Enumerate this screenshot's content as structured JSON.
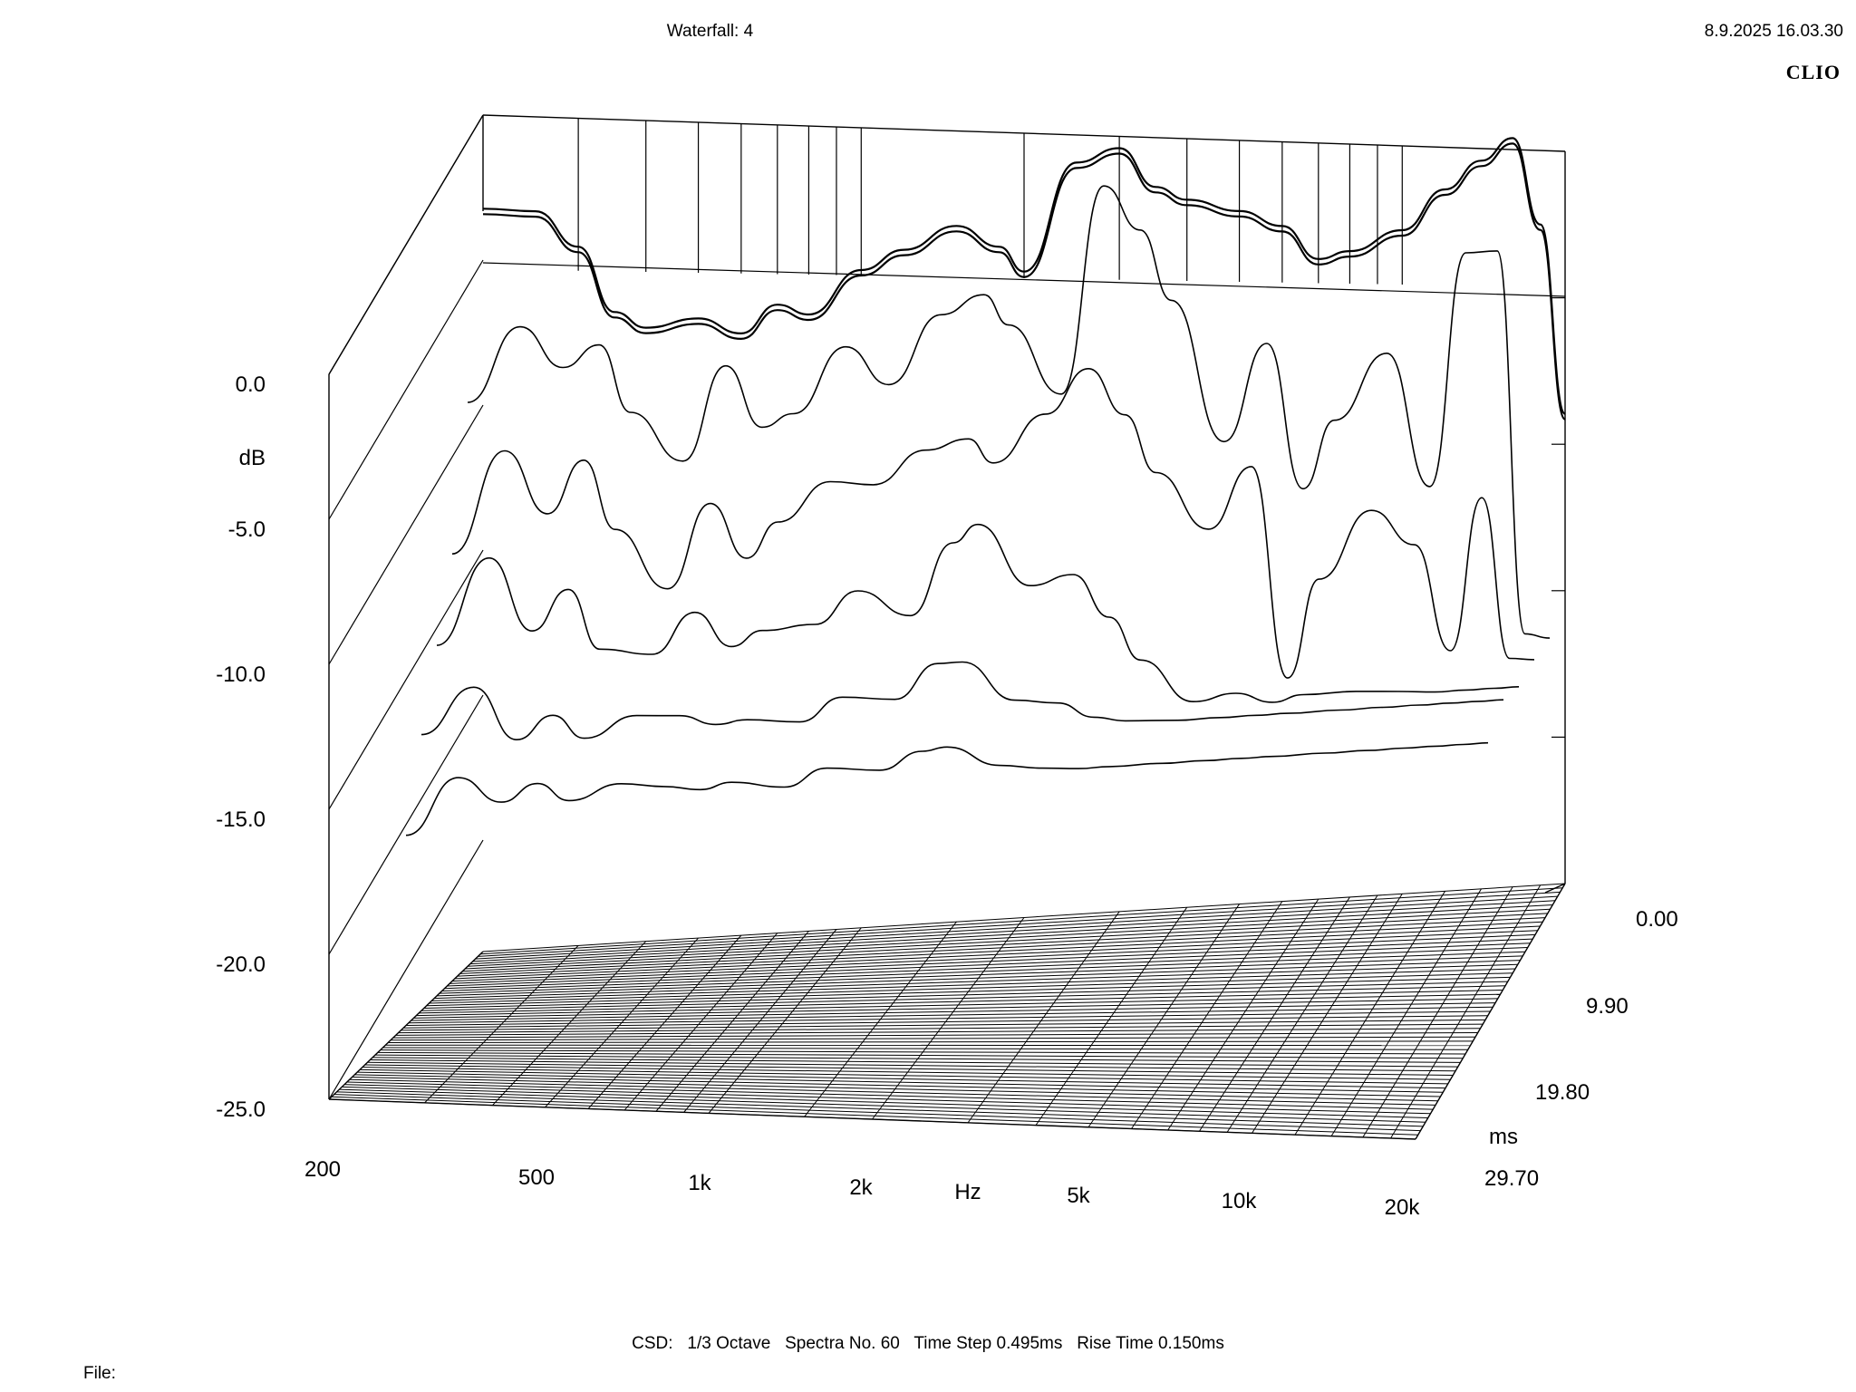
{
  "header": {
    "title": "Waterfall: 4",
    "datetime": "8.9.2025 16.03.30",
    "brand": "CLIO"
  },
  "footer": {
    "summary": "CSD:   1/3 Octave   Spectra No. 60   Time Step 0.495ms   Rise Time 0.150ms",
    "file_label": "File:"
  },
  "chart_data": {
    "type": "waterfall",
    "title": "Waterfall: 4",
    "xlabel": "Hz",
    "ylabel": "dB",
    "zlabel": "ms",
    "x_scale": "log",
    "xlim": [
      200,
      20000
    ],
    "ylim": [
      -25,
      0
    ],
    "zlim": [
      0,
      29.7
    ],
    "x_ticks": [
      "200",
      "500",
      "1k",
      "2k",
      "5k",
      "10k",
      "20k"
    ],
    "x_tick_values": [
      200,
      500,
      1000,
      2000,
      5000,
      10000,
      20000
    ],
    "y_ticks": [
      "0.0",
      "-5.0",
      "-10.0",
      "-15.0",
      "-20.0",
      "-25.0"
    ],
    "y_tick_values": [
      0,
      -5,
      -10,
      -15,
      -20,
      -25
    ],
    "z_ticks": [
      "0.00",
      "9.90",
      "19.80",
      "29.70"
    ],
    "z_tick_values": [
      0,
      9.9,
      19.8,
      29.7
    ],
    "spectra_count": 60,
    "time_step_ms": 0.495,
    "frequencies_hz": [
      200,
      250,
      300,
      350,
      400,
      500,
      600,
      700,
      800,
      1000,
      1200,
      1500,
      1800,
      2000,
      2500,
      3000,
      3500,
      4000,
      5000,
      6000,
      7000,
      8000,
      10000,
      12000,
      14000,
      16000,
      18000,
      20000
    ],
    "series": [
      {
        "time_ms": 0.0,
        "values": [
          0.3,
          0.1,
          -1.2,
          -3.5,
          -4.1,
          -3.9,
          -4.5,
          -3.6,
          -4.0,
          -2.6,
          -2.0,
          -1.3,
          -2.1,
          -3.0,
          0.6,
          1.0,
          -0.4,
          -0.9,
          -1.4,
          -2.0,
          -3.2,
          -3.0,
          -2.4,
          -1.1,
          -0.2,
          0.5,
          -2.5,
          -9.0
        ]
      },
      {
        "time_ms": 2.97,
        "values": [
          -5.5,
          -3.0,
          -4.5,
          -3.8,
          -6.2,
          -8.0,
          -4.8,
          -7.0,
          -6.6,
          -4.4,
          -5.8,
          -3.5,
          -2.9,
          -4.0,
          -6.5,
          0.6,
          -1.0,
          -3.5,
          -8.5,
          -5.2,
          -10.3,
          -8.0,
          -5.8,
          -10.5,
          -2.5,
          -2.5,
          -15.8,
          -16.0
        ]
      },
      {
        "time_ms": 5.94,
        "values": [
          -10.0,
          -6.5,
          -8.8,
          -7.0,
          -9.5,
          -11.7,
          -8.8,
          -10.8,
          -9.6,
          -8.3,
          -8.5,
          -7.4,
          -7.1,
          -8.0,
          -6.4,
          -4.9,
          -6.6,
          -8.7,
          -10.8,
          -8.7,
          -16.2,
          -12.8,
          -10.5,
          -11.8,
          -15.6,
          -10.3,
          -16.0,
          -16.1
        ]
      },
      {
        "time_ms": 8.91,
        "values": [
          -12.5,
          -9.5,
          -12.2,
          -10.8,
          -13.0,
          -13.3,
          -11.9,
          -13.2,
          -12.7,
          -12.6,
          -11.5,
          -12.5,
          -10.0,
          -9.4,
          -11.7,
          -11.4,
          -13.0,
          -14.6,
          -16.2,
          -16.0,
          -16.4,
          -16.2,
          -16.2,
          -16.3,
          -16.4,
          -16.4,
          -16.4,
          -16.4
        ]
      },
      {
        "time_ms": 11.88,
        "values": [
          -15.0,
          -13.4,
          -15.4,
          -14.6,
          -15.5,
          -14.8,
          -14.9,
          -15.3,
          -15.2,
          -15.4,
          -14.6,
          -14.8,
          -13.6,
          -13.6,
          -15.1,
          -15.3,
          -15.9,
          -16.1,
          -16.2,
          -16.2,
          -16.2,
          -16.2,
          -16.2,
          -16.2,
          -16.2,
          -16.2,
          -16.2,
          -16.2
        ]
      },
      {
        "time_ms": 14.85,
        "values": [
          -18.0,
          -16.0,
          -17.0,
          -16.4,
          -17.1,
          -16.6,
          -16.8,
          -17.0,
          -16.8,
          -17.1,
          -16.5,
          -16.7,
          -16.1,
          -16.0,
          -16.8,
          -17.0,
          -17.1,
          -17.1,
          -17.1,
          -17.1,
          -17.1,
          -17.1,
          -17.1,
          -17.1,
          -17.1,
          -17.1,
          -17.1,
          -17.1
        ]
      }
    ]
  }
}
